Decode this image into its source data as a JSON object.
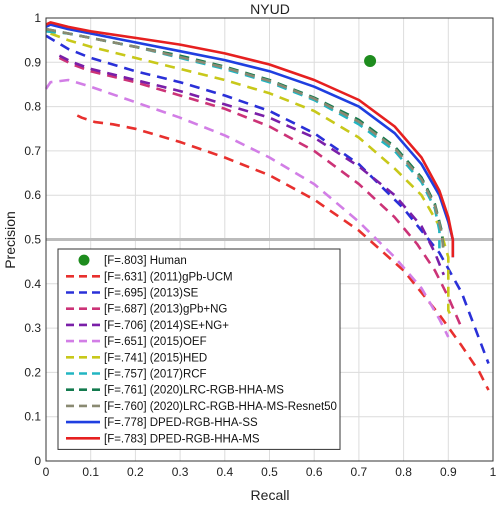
{
  "chart_data": {
    "type": "line",
    "title": "NYUD",
    "xlabel": "Recall",
    "ylabel": "Precision",
    "xlim": [
      0,
      1
    ],
    "ylim": [
      0,
      1
    ],
    "xticks": [
      "0",
      "0.1",
      "0.2",
      "0.3",
      "0.4",
      "0.5",
      "0.6",
      "0.7",
      "0.8",
      "0.9",
      "1"
    ],
    "yticks": [
      "0",
      "0.1",
      "0.2",
      "0.3",
      "0.4",
      "0.5",
      "0.6",
      "0.7",
      "0.8",
      "0.9",
      "1"
    ],
    "grid": true,
    "legend_position": "bottom-left",
    "reference_line": {
      "y": 0.5,
      "color": "#bbbbbb"
    },
    "human": {
      "label": "[F=.803] Human",
      "x": 0.725,
      "y": 0.903,
      "color": "#1e8c1e"
    },
    "series": [
      {
        "name": "[F=.631]  (2011)gPb-UCM",
        "color": "#e8302e",
        "dash": "dashed",
        "points": [
          [
            0.07,
            0.78
          ],
          [
            0.08,
            0.775
          ],
          [
            0.11,
            0.765
          ],
          [
            0.15,
            0.76
          ],
          [
            0.2,
            0.75
          ],
          [
            0.3,
            0.72
          ],
          [
            0.4,
            0.685
          ],
          [
            0.5,
            0.645
          ],
          [
            0.6,
            0.59
          ],
          [
            0.7,
            0.52
          ],
          [
            0.8,
            0.43
          ],
          [
            0.88,
            0.33
          ],
          [
            0.93,
            0.26
          ],
          [
            0.97,
            0.2
          ],
          [
            0.99,
            0.16
          ]
        ]
      },
      {
        "name": "[F=.695]  (2013)SE",
        "color": "#2a30d8",
        "dash": "dashed",
        "points": [
          [
            0,
            0.96
          ],
          [
            0.05,
            0.93
          ],
          [
            0.1,
            0.91
          ],
          [
            0.2,
            0.88
          ],
          [
            0.3,
            0.855
          ],
          [
            0.4,
            0.825
          ],
          [
            0.5,
            0.79
          ],
          [
            0.6,
            0.74
          ],
          [
            0.7,
            0.67
          ],
          [
            0.8,
            0.57
          ],
          [
            0.88,
            0.47
          ],
          [
            0.93,
            0.38
          ],
          [
            0.96,
            0.3
          ],
          [
            0.99,
            0.22
          ]
        ]
      },
      {
        "name": "[F=.687]  (2013)gPb+NG",
        "color": "#cc3377",
        "dash": "dashed",
        "points": [
          [
            0.03,
            0.91
          ],
          [
            0.06,
            0.895
          ],
          [
            0.1,
            0.88
          ],
          [
            0.2,
            0.855
          ],
          [
            0.3,
            0.825
          ],
          [
            0.4,
            0.795
          ],
          [
            0.5,
            0.755
          ],
          [
            0.6,
            0.7
          ],
          [
            0.7,
            0.625
          ],
          [
            0.78,
            0.55
          ],
          [
            0.83,
            0.49
          ],
          [
            0.87,
            0.43
          ],
          [
            0.9,
            0.37
          ],
          [
            0.93,
            0.3
          ]
        ]
      },
      {
        "name": "[F=.706]  (2014)SE+NG+",
        "color": "#7a1fa8",
        "dash": "dashed",
        "points": [
          [
            0.03,
            0.915
          ],
          [
            0.06,
            0.9
          ],
          [
            0.1,
            0.885
          ],
          [
            0.2,
            0.86
          ],
          [
            0.3,
            0.835
          ],
          [
            0.4,
            0.805
          ],
          [
            0.5,
            0.775
          ],
          [
            0.6,
            0.73
          ],
          [
            0.7,
            0.665
          ],
          [
            0.78,
            0.6
          ],
          [
            0.84,
            0.53
          ],
          [
            0.87,
            0.47
          ],
          [
            0.89,
            0.42
          ]
        ]
      },
      {
        "name": "[F=.651]  (2015)OEF",
        "color": "#d27ee6",
        "dash": "dashed",
        "points": [
          [
            0,
            0.84
          ],
          [
            0.01,
            0.855
          ],
          [
            0.05,
            0.86
          ],
          [
            0.1,
            0.845
          ],
          [
            0.2,
            0.81
          ],
          [
            0.3,
            0.775
          ],
          [
            0.4,
            0.735
          ],
          [
            0.5,
            0.685
          ],
          [
            0.6,
            0.625
          ],
          [
            0.7,
            0.54
          ],
          [
            0.78,
            0.46
          ],
          [
            0.84,
            0.39
          ],
          [
            0.88,
            0.32
          ],
          [
            0.9,
            0.28
          ]
        ]
      },
      {
        "name": "[F=.741]  (2015)HED",
        "color": "#c8c81a",
        "dash": "dashed",
        "points": [
          [
            0.01,
            0.965
          ],
          [
            0.05,
            0.95
          ],
          [
            0.1,
            0.935
          ],
          [
            0.2,
            0.91
          ],
          [
            0.3,
            0.885
          ],
          [
            0.4,
            0.86
          ],
          [
            0.5,
            0.83
          ],
          [
            0.6,
            0.79
          ],
          [
            0.7,
            0.73
          ],
          [
            0.78,
            0.66
          ],
          [
            0.84,
            0.6
          ],
          [
            0.88,
            0.53
          ],
          [
            0.9,
            0.46
          ],
          [
            0.9,
            0.4
          ],
          [
            0.9,
            0.34
          ],
          [
            0.91,
            0.32
          ]
        ]
      },
      {
        "name": "[F=.757]  (2017)RCF",
        "color": "#22b5c2",
        "dash": "dashed",
        "points": [
          [
            0,
            0.97
          ],
          [
            0.05,
            0.965
          ],
          [
            0.1,
            0.955
          ],
          [
            0.2,
            0.935
          ],
          [
            0.3,
            0.91
          ],
          [
            0.4,
            0.885
          ],
          [
            0.5,
            0.855
          ],
          [
            0.6,
            0.815
          ],
          [
            0.7,
            0.76
          ],
          [
            0.78,
            0.7
          ],
          [
            0.84,
            0.63
          ],
          [
            0.87,
            0.57
          ],
          [
            0.88,
            0.52
          ],
          [
            0.88,
            0.48
          ]
        ]
      },
      {
        "name": "[F=.761]  (2020)LRC-RGB-HHA-MS",
        "color": "#137a4e",
        "dash": "dashed",
        "points": [
          [
            0,
            0.975
          ],
          [
            0.05,
            0.965
          ],
          [
            0.1,
            0.955
          ],
          [
            0.2,
            0.935
          ],
          [
            0.3,
            0.915
          ],
          [
            0.4,
            0.89
          ],
          [
            0.5,
            0.86
          ],
          [
            0.6,
            0.82
          ],
          [
            0.7,
            0.77
          ],
          [
            0.78,
            0.71
          ],
          [
            0.84,
            0.64
          ],
          [
            0.87,
            0.58
          ],
          [
            0.885,
            0.52
          ],
          [
            0.89,
            0.47
          ]
        ]
      },
      {
        "name": "[F=.760]  (2020)LRC-RGB-HHA-MS-Resnet50",
        "color": "#8a8a72",
        "dash": "dashed",
        "points": [
          [
            0,
            0.975
          ],
          [
            0.05,
            0.965
          ],
          [
            0.1,
            0.955
          ],
          [
            0.2,
            0.935
          ],
          [
            0.3,
            0.912
          ],
          [
            0.4,
            0.888
          ],
          [
            0.5,
            0.858
          ],
          [
            0.6,
            0.818
          ],
          [
            0.7,
            0.766
          ],
          [
            0.78,
            0.706
          ],
          [
            0.84,
            0.636
          ],
          [
            0.87,
            0.576
          ],
          [
            0.885,
            0.516
          ],
          [
            0.89,
            0.466
          ]
        ]
      },
      {
        "name": "[F=.778]  DPED-RGB-HHA-SS",
        "color": "#1f3fe0",
        "dash": "solid",
        "points": [
          [
            0,
            0.98
          ],
          [
            0.01,
            0.985
          ],
          [
            0.05,
            0.975
          ],
          [
            0.1,
            0.965
          ],
          [
            0.2,
            0.945
          ],
          [
            0.3,
            0.925
          ],
          [
            0.4,
            0.905
          ],
          [
            0.5,
            0.88
          ],
          [
            0.6,
            0.845
          ],
          [
            0.7,
            0.8
          ],
          [
            0.78,
            0.74
          ],
          [
            0.84,
            0.67
          ],
          [
            0.88,
            0.6
          ],
          [
            0.9,
            0.54
          ],
          [
            0.91,
            0.5
          ],
          [
            0.91,
            0.46
          ]
        ]
      },
      {
        "name": "[F=.783]  DPED-RGB-HHA-MS",
        "color": "#e62020",
        "dash": "solid",
        "points": [
          [
            0,
            0.985
          ],
          [
            0.01,
            0.99
          ],
          [
            0.05,
            0.98
          ],
          [
            0.1,
            0.97
          ],
          [
            0.2,
            0.955
          ],
          [
            0.3,
            0.94
          ],
          [
            0.4,
            0.92
          ],
          [
            0.5,
            0.895
          ],
          [
            0.6,
            0.86
          ],
          [
            0.7,
            0.815
          ],
          [
            0.78,
            0.755
          ],
          [
            0.84,
            0.685
          ],
          [
            0.88,
            0.61
          ],
          [
            0.9,
            0.55
          ],
          [
            0.91,
            0.5
          ],
          [
            0.91,
            0.46
          ]
        ]
      }
    ]
  }
}
